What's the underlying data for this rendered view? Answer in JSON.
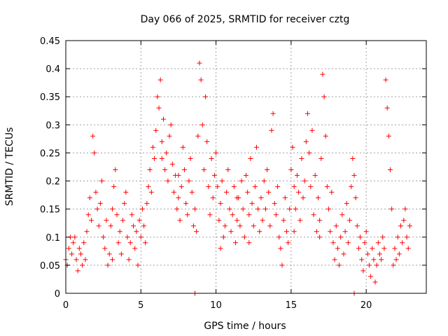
{
  "chart_data": {
    "type": "scatter",
    "title": "Day 066 of 2025, SRMTID for receiver cztg",
    "xlabel": "GPS time / hours",
    "ylabel": "SRMTID / TECUs",
    "xlim": [
      0,
      24
    ],
    "ylim": [
      0,
      0.45
    ],
    "xticks": [
      0,
      5,
      10,
      15,
      20
    ],
    "xtick_labels": [
      "0",
      "5",
      "10",
      "15",
      "20"
    ],
    "yticks": [
      0,
      0.05,
      0.1,
      0.15,
      0.2,
      0.25,
      0.3,
      0.35,
      0.4,
      0.45
    ],
    "ytick_labels": [
      "0",
      "0.05",
      "0.1",
      "0.15",
      "0.2",
      "0.25",
      "0.3",
      "0.35",
      "0.4",
      "0.45"
    ],
    "grid": true,
    "marker": "+",
    "color": "#ff0000",
    "series": [
      {
        "name": "SRMTID",
        "points": [
          [
            0.0,
            0.06
          ],
          [
            0.1,
            0.05
          ],
          [
            0.2,
            0.08
          ],
          [
            0.3,
            0.1
          ],
          [
            0.4,
            0.07
          ],
          [
            0.5,
            0.09
          ],
          [
            0.6,
            0.1
          ],
          [
            0.7,
            0.06
          ],
          [
            0.8,
            0.04
          ],
          [
            0.9,
            0.08
          ],
          [
            1.0,
            0.07
          ],
          [
            1.1,
            0.05
          ],
          [
            1.2,
            0.09
          ],
          [
            1.3,
            0.06
          ],
          [
            1.4,
            0.11
          ],
          [
            1.5,
            0.14
          ],
          [
            1.6,
            0.17
          ],
          [
            1.7,
            0.13
          ],
          [
            1.8,
            0.28
          ],
          [
            1.9,
            0.25
          ],
          [
            2.0,
            0.18
          ],
          [
            2.1,
            0.15
          ],
          [
            2.2,
            0.12
          ],
          [
            2.3,
            0.16
          ],
          [
            2.4,
            0.2
          ],
          [
            2.5,
            0.1
          ],
          [
            2.6,
            0.08
          ],
          [
            2.7,
            0.13
          ],
          [
            2.8,
            0.05
          ],
          [
            2.9,
            0.07
          ],
          [
            3.0,
            0.12
          ],
          [
            3.1,
            0.15
          ],
          [
            3.2,
            0.19
          ],
          [
            3.3,
            0.22
          ],
          [
            3.4,
            0.14
          ],
          [
            3.5,
            0.09
          ],
          [
            3.6,
            0.11
          ],
          [
            3.7,
            0.07
          ],
          [
            3.8,
            0.13
          ],
          [
            3.9,
            0.16
          ],
          [
            4.0,
            0.18
          ],
          [
            4.1,
            0.1
          ],
          [
            4.2,
            0.06
          ],
          [
            4.3,
            0.09
          ],
          [
            4.4,
            0.14
          ],
          [
            4.5,
            0.12
          ],
          [
            4.6,
            0.08
          ],
          [
            4.7,
            0.11
          ],
          [
            4.8,
            0.05
          ],
          [
            4.9,
            0.13
          ],
          [
            5.0,
            0.1
          ],
          [
            5.1,
            0.15
          ],
          [
            5.2,
            0.12
          ],
          [
            5.3,
            0.09
          ],
          [
            5.4,
            0.16
          ],
          [
            5.5,
            0.19
          ],
          [
            5.6,
            0.22
          ],
          [
            5.7,
            0.18
          ],
          [
            5.8,
            0.26
          ],
          [
            5.9,
            0.24
          ],
          [
            6.0,
            0.29
          ],
          [
            6.1,
            0.35
          ],
          [
            6.2,
            0.33
          ],
          [
            6.3,
            0.38
          ],
          [
            6.4,
            0.27
          ],
          [
            6.5,
            0.31
          ],
          [
            6.6,
            0.22
          ],
          [
            6.7,
            0.25
          ],
          [
            6.8,
            0.2
          ],
          [
            6.9,
            0.28
          ],
          [
            7.0,
            0.3
          ],
          [
            7.1,
            0.23
          ],
          [
            7.2,
            0.18
          ],
          [
            7.3,
            0.21
          ],
          [
            7.4,
            0.15
          ],
          [
            7.5,
            0.17
          ],
          [
            7.6,
            0.13
          ],
          [
            7.7,
            0.19
          ],
          [
            7.8,
            0.26
          ],
          [
            7.9,
            0.22
          ],
          [
            8.0,
            0.16
          ],
          [
            8.1,
            0.14
          ],
          [
            8.2,
            0.2
          ],
          [
            8.3,
            0.24
          ],
          [
            8.4,
            0.18
          ],
          [
            8.5,
            0.12
          ],
          [
            8.6,
            0.15
          ],
          [
            8.7,
            0.11
          ],
          [
            8.8,
            0.28
          ],
          [
            8.9,
            0.41
          ],
          [
            9.0,
            0.38
          ],
          [
            9.1,
            0.3
          ],
          [
            9.2,
            0.22
          ],
          [
            9.3,
            0.35
          ],
          [
            9.4,
            0.27
          ],
          [
            9.5,
            0.19
          ],
          [
            9.6,
            0.14
          ],
          [
            9.7,
            0.24
          ],
          [
            9.8,
            0.17
          ],
          [
            9.9,
            0.21
          ],
          [
            10.0,
            0.25
          ],
          [
            10.1,
            0.19
          ],
          [
            10.2,
            0.13
          ],
          [
            10.3,
            0.16
          ],
          [
            10.4,
            0.2
          ],
          [
            10.5,
            0.1
          ],
          [
            10.6,
            0.12
          ],
          [
            10.7,
            0.18
          ],
          [
            10.8,
            0.22
          ],
          [
            10.9,
            0.15
          ],
          [
            11.0,
            0.11
          ],
          [
            11.1,
            0.14
          ],
          [
            11.2,
            0.19
          ],
          [
            11.3,
            0.09
          ],
          [
            11.4,
            0.13
          ],
          [
            11.5,
            0.17
          ],
          [
            11.6,
            0.12
          ],
          [
            11.7,
            0.2
          ],
          [
            11.8,
            0.15
          ],
          [
            11.9,
            0.1
          ],
          [
            12.0,
            0.21
          ],
          [
            12.1,
            0.18
          ],
          [
            12.2,
            0.14
          ],
          [
            12.3,
            0.24
          ],
          [
            12.4,
            0.16
          ],
          [
            12.5,
            0.12
          ],
          [
            12.6,
            0.19
          ],
          [
            12.7,
            0.26
          ],
          [
            12.8,
            0.15
          ],
          [
            12.9,
            0.11
          ],
          [
            13.0,
            0.17
          ],
          [
            13.1,
            0.13
          ],
          [
            13.2,
            0.2
          ],
          [
            13.3,
            0.15
          ],
          [
            13.4,
            0.22
          ],
          [
            13.5,
            0.18
          ],
          [
            13.6,
            0.12
          ],
          [
            13.7,
            0.29
          ],
          [
            13.8,
            0.32
          ],
          [
            13.9,
            0.16
          ],
          [
            14.0,
            0.14
          ],
          [
            14.1,
            0.19
          ],
          [
            14.2,
            0.1
          ],
          [
            14.3,
            0.08
          ],
          [
            14.4,
            0.05
          ],
          [
            14.5,
            0.13
          ],
          [
            14.6,
            0.17
          ],
          [
            14.7,
            0.11
          ],
          [
            14.8,
            0.09
          ],
          [
            14.9,
            0.15
          ],
          [
            15.0,
            0.22
          ],
          [
            15.1,
            0.26
          ],
          [
            15.2,
            0.19
          ],
          [
            15.3,
            0.15
          ],
          [
            15.4,
            0.21
          ],
          [
            15.5,
            0.18
          ],
          [
            15.6,
            0.13
          ],
          [
            15.7,
            0.24
          ],
          [
            15.8,
            0.17
          ],
          [
            15.9,
            0.2
          ],
          [
            16.0,
            0.27
          ],
          [
            16.1,
            0.32
          ],
          [
            16.2,
            0.25
          ],
          [
            16.3,
            0.19
          ],
          [
            16.4,
            0.29
          ],
          [
            16.5,
            0.14
          ],
          [
            16.6,
            0.21
          ],
          [
            16.7,
            0.11
          ],
          [
            16.8,
            0.17
          ],
          [
            16.9,
            0.13
          ],
          [
            17.0,
            0.24
          ],
          [
            17.1,
            0.39
          ],
          [
            17.2,
            0.35
          ],
          [
            17.3,
            0.28
          ],
          [
            17.4,
            0.19
          ],
          [
            17.5,
            0.15
          ],
          [
            17.6,
            0.11
          ],
          [
            17.7,
            0.18
          ],
          [
            17.8,
            0.09
          ],
          [
            17.9,
            0.06
          ],
          [
            18.0,
            0.12
          ],
          [
            18.1,
            0.08
          ],
          [
            18.2,
            0.05
          ],
          [
            18.3,
            0.1
          ],
          [
            18.4,
            0.14
          ],
          [
            18.5,
            0.07
          ],
          [
            18.6,
            0.11
          ],
          [
            18.7,
            0.16
          ],
          [
            18.8,
            0.09
          ],
          [
            18.9,
            0.13
          ],
          [
            19.0,
            0.19
          ],
          [
            19.1,
            0.24
          ],
          [
            19.2,
            0.21
          ],
          [
            19.3,
            0.17
          ],
          [
            19.4,
            0.12
          ],
          [
            19.5,
            0.08
          ],
          [
            19.6,
            0.1
          ],
          [
            19.7,
            0.06
          ],
          [
            19.8,
            0.04
          ],
          [
            19.9,
            0.09
          ],
          [
            20.0,
            0.11
          ],
          [
            20.1,
            0.07
          ],
          [
            20.2,
            0.05
          ],
          [
            20.3,
            0.03
          ],
          [
            20.4,
            0.08
          ],
          [
            20.5,
            0.06
          ],
          [
            20.6,
            0.02
          ],
          [
            20.7,
            0.05
          ],
          [
            20.8,
            0.09
          ],
          [
            20.9,
            0.07
          ],
          [
            21.0,
            0.06
          ],
          [
            21.1,
            0.1
          ],
          [
            21.2,
            0.08
          ],
          [
            21.3,
            0.38
          ],
          [
            21.4,
            0.33
          ],
          [
            21.5,
            0.28
          ],
          [
            21.6,
            0.22
          ],
          [
            21.7,
            0.15
          ],
          [
            21.8,
            0.05
          ],
          [
            21.9,
            0.08
          ],
          [
            22.0,
            0.06
          ],
          [
            22.1,
            0.1
          ],
          [
            22.2,
            0.07
          ],
          [
            22.3,
            0.12
          ],
          [
            22.4,
            0.09
          ],
          [
            22.5,
            0.13
          ],
          [
            22.6,
            0.15
          ],
          [
            22.7,
            0.1
          ],
          [
            22.8,
            0.08
          ],
          [
            22.9,
            0.12
          ],
          [
            8.6,
            0.0
          ],
          [
            19.2,
            0.0
          ],
          [
            3.1,
            0.06
          ],
          [
            6.4,
            0.24
          ],
          [
            10.3,
            0.08
          ],
          [
            12.2,
            0.09
          ],
          [
            15.2,
            0.11
          ],
          [
            16.9,
            0.1
          ],
          [
            7.5,
            0.21
          ],
          [
            11.4,
            0.17
          ]
        ]
      }
    ]
  }
}
